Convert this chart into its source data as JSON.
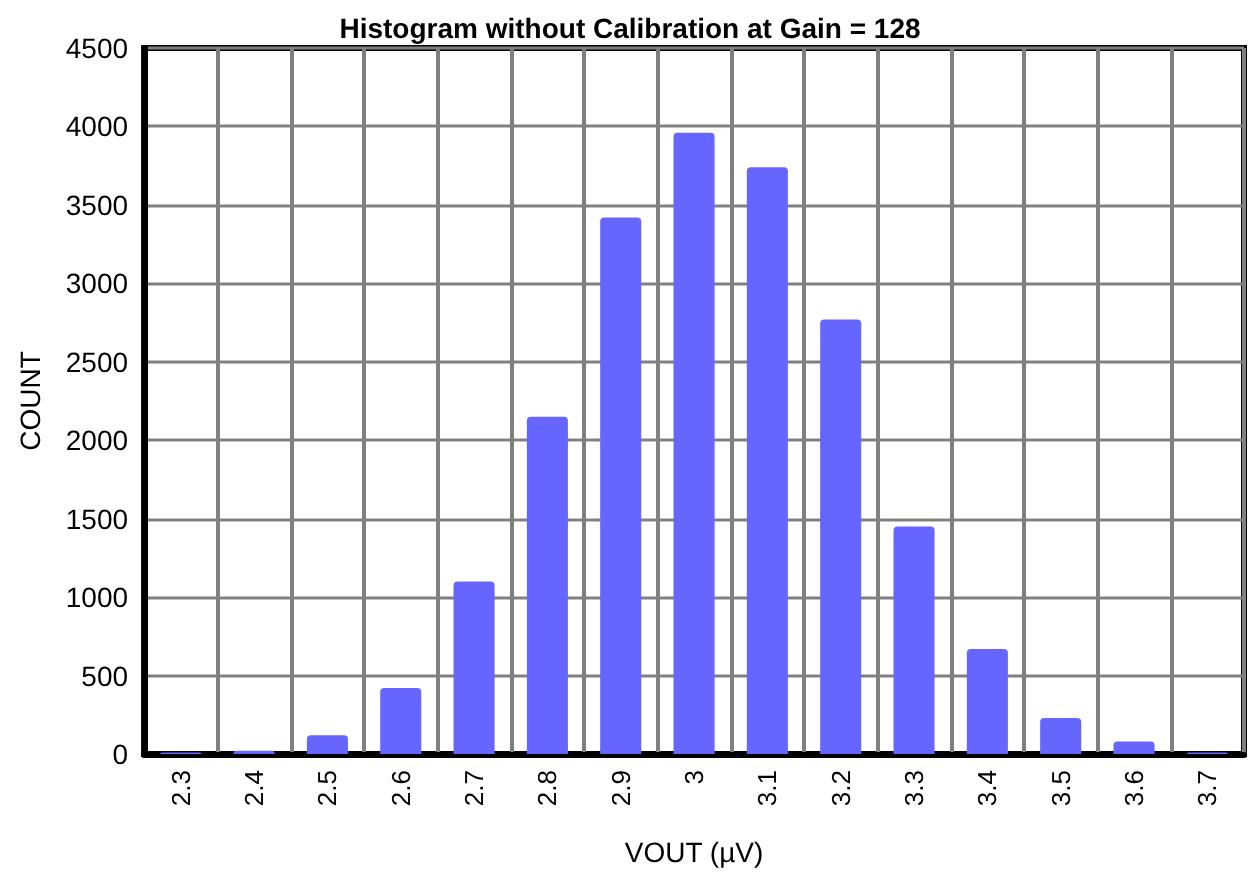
{
  "chart_data": {
    "type": "bar",
    "title": "Histogram without Calibration at Gain = 128",
    "xlabel": "VOUT (µV)",
    "ylabel": "COUNT",
    "categories": [
      "2.3",
      "2.4",
      "2.5",
      "2.6",
      "2.7",
      "2.8",
      "2.9",
      "3",
      "3.1",
      "3.2",
      "3.3",
      "3.4",
      "3.5",
      "3.6",
      "3.7"
    ],
    "values": [
      10,
      20,
      120,
      420,
      1100,
      2150,
      3420,
      3960,
      3740,
      2770,
      1450,
      670,
      230,
      80,
      10
    ],
    "color": "#6666ff",
    "ylim": [
      0,
      4500
    ],
    "yticks": [
      0,
      500,
      1000,
      1500,
      2000,
      2500,
      3000,
      3500,
      4000,
      4500
    ],
    "grid": true
  }
}
